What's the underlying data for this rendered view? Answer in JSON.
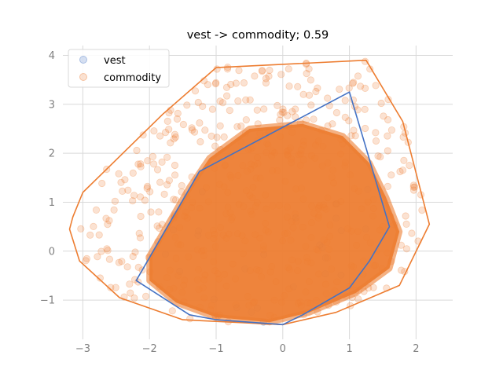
{
  "chart_data": {
    "type": "scatter",
    "title": "vest -> commodity; 0.59",
    "xlabel": "",
    "ylabel": "",
    "xlim": [
      -3.3,
      2.55
    ],
    "ylim": [
      -1.8,
      4.2
    ],
    "x_ticks": [
      -3,
      -2,
      -1,
      0,
      1,
      2
    ],
    "y_ticks": [
      -1,
      0,
      1,
      2,
      3,
      4
    ],
    "grid": true,
    "legend_position": "top-left",
    "series": [
      {
        "name": "vest",
        "color": "#4472c4",
        "marker": "circle",
        "hull": [
          [
            1.0,
            3.25
          ],
          [
            1.6,
            0.5
          ],
          [
            1.3,
            -0.2
          ],
          [
            1.0,
            -0.75
          ],
          [
            0.3,
            -1.3
          ],
          [
            0.0,
            -1.5
          ],
          [
            -1.0,
            -1.4
          ],
          [
            -1.4,
            -1.3
          ],
          [
            -2.2,
            -0.6
          ],
          [
            -1.25,
            1.63
          ]
        ]
      },
      {
        "name": "commodity",
        "color": "#ed7d31",
        "marker": "circle",
        "hull": [
          [
            1.25,
            3.9
          ],
          [
            1.8,
            2.65
          ],
          [
            2.2,
            0.55
          ],
          [
            1.75,
            -0.7
          ],
          [
            0.8,
            -1.25
          ],
          [
            0.0,
            -1.5
          ],
          [
            -1.5,
            -1.4
          ],
          [
            -2.45,
            -0.95
          ],
          [
            -3.05,
            -0.2
          ],
          [
            -3.2,
            0.45
          ],
          [
            -3.15,
            0.7
          ],
          [
            -3.0,
            1.2
          ],
          [
            -1.8,
            2.8
          ],
          [
            -1.0,
            3.75
          ]
        ],
        "core_region": [
          [
            -0.5,
            2.5
          ],
          [
            0.3,
            2.6
          ],
          [
            0.9,
            2.35
          ],
          [
            1.3,
            1.8
          ],
          [
            1.55,
            1.1
          ],
          [
            1.75,
            0.4
          ],
          [
            1.6,
            -0.35
          ],
          [
            1.1,
            -0.85
          ],
          [
            0.4,
            -1.25
          ],
          [
            -0.2,
            -1.45
          ],
          [
            -1.0,
            -1.35
          ],
          [
            -1.6,
            -1.05
          ],
          [
            -2.0,
            -0.6
          ],
          [
            -2.0,
            -0.1
          ],
          [
            -1.7,
            0.6
          ],
          [
            -1.4,
            1.3
          ],
          [
            -1.1,
            1.9
          ]
        ]
      }
    ]
  }
}
